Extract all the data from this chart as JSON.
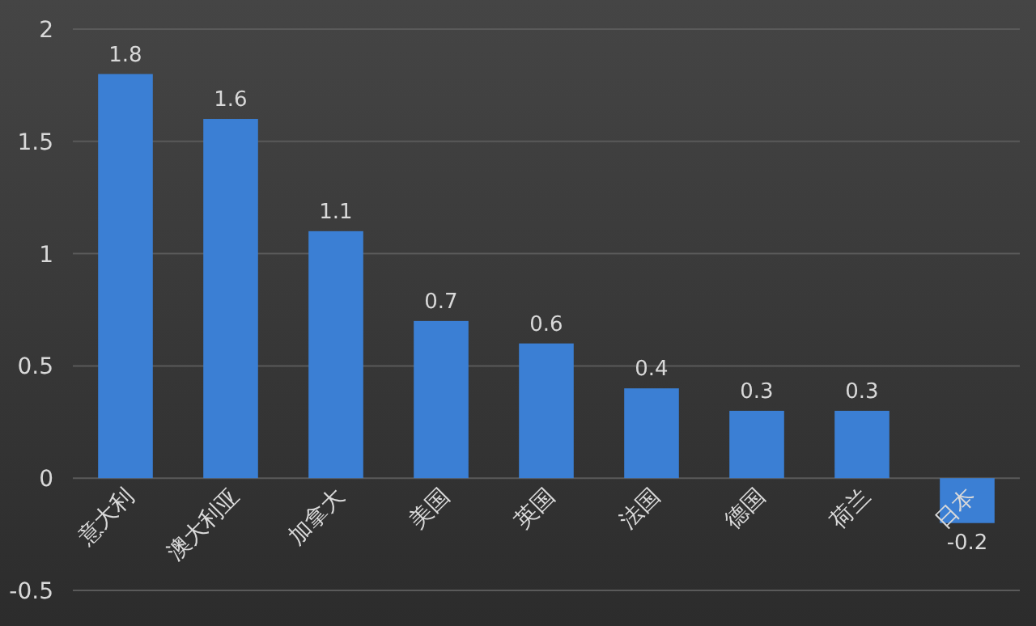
{
  "chart_data": {
    "type": "bar",
    "categories": [
      "意大利",
      "澳大利亚",
      "加拿大",
      "美国",
      "英国",
      "法国",
      "德国",
      "荷兰",
      "日本"
    ],
    "values": [
      1.8,
      1.6,
      1.1,
      0.7,
      0.6,
      0.4,
      0.3,
      0.3,
      -0.2
    ],
    "color": "#3b7fd4",
    "ylim": [
      -0.5,
      2
    ],
    "yticks": [
      -0.5,
      0,
      0.5,
      1,
      1.5,
      2
    ],
    "grid": "y",
    "data_labels": true
  }
}
